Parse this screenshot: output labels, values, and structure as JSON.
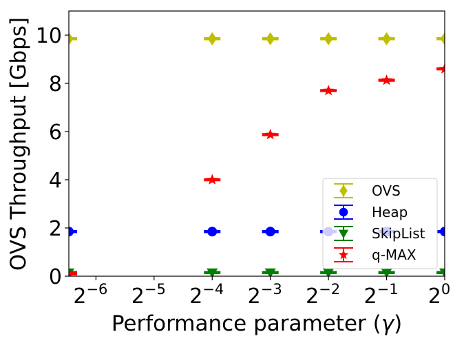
{
  "chart_data": {
    "type": "scatter",
    "xlabel_prefix": "Performance parameter (",
    "xlabel_symbol": "γ",
    "xlabel_suffix": ")",
    "ylabel": "OVS Throughput [Gbps]",
    "x_scale": "log2",
    "xlim": [
      0.01131,
      1.0
    ],
    "ylim": [
      0,
      11
    ],
    "x_ticks": [
      {
        "value": 0.015625,
        "base": "2",
        "exp": "−6"
      },
      {
        "value": 0.03125,
        "base": "2",
        "exp": "−5"
      },
      {
        "value": 0.0625,
        "base": "2",
        "exp": "−4"
      },
      {
        "value": 0.125,
        "base": "2",
        "exp": "−3"
      },
      {
        "value": 0.25,
        "base": "2",
        "exp": "−2"
      },
      {
        "value": 0.5,
        "base": "2",
        "exp": "−1"
      },
      {
        "value": 1.0,
        "base": "2",
        "exp": "0"
      }
    ],
    "y_ticks": [
      0,
      2,
      4,
      6,
      8,
      10
    ],
    "grid": false,
    "legend_position": "bottom-right",
    "series": [
      {
        "name": "OVS",
        "color": "#bfbf00",
        "marker": "thin-diamond",
        "x": [
          0.01131,
          0.0625,
          0.125,
          0.25,
          0.5,
          1.0
        ],
        "y": [
          9.85,
          9.85,
          9.85,
          9.85,
          9.85,
          9.85
        ]
      },
      {
        "name": "Heap",
        "color": "#0000ff",
        "marker": "circle",
        "x": [
          0.01131,
          0.0625,
          0.125,
          0.25,
          0.5,
          1.0
        ],
        "y": [
          1.85,
          1.85,
          1.85,
          1.85,
          1.85,
          1.85
        ]
      },
      {
        "name": "SkipList",
        "color": "#008000",
        "marker": "triangle-down",
        "x": [
          0.01131,
          0.0625,
          0.125,
          0.25,
          0.5,
          1.0
        ],
        "y": [
          0.15,
          0.15,
          0.15,
          0.15,
          0.15,
          0.15
        ]
      },
      {
        "name": "q-MAX",
        "color": "#ff0000",
        "marker": "star",
        "x": [
          0.01131,
          0.0625,
          0.125,
          0.25,
          0.5,
          1.0
        ],
        "y": [
          0.1,
          4.0,
          5.87,
          7.7,
          8.13,
          8.6
        ]
      }
    ]
  }
}
